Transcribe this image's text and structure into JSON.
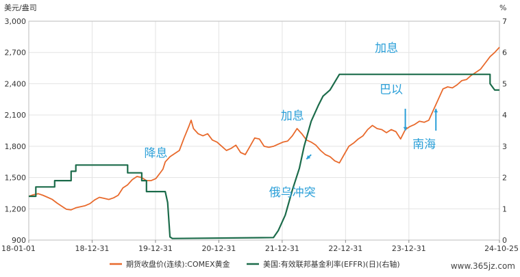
{
  "chart_data": {
    "type": "line",
    "left_axis": {
      "unit": "美元/盎司",
      "ticks": [
        "3,000",
        "2,700",
        "2,400",
        "2,100",
        "1,800",
        "1,500",
        "1,200",
        "900"
      ],
      "ylim": [
        900,
        3000
      ]
    },
    "right_axis": {
      "unit": "%",
      "ticks": [
        "7",
        "6",
        "5",
        "4",
        "3",
        "2",
        "1",
        "0"
      ],
      "ylim": [
        0,
        7
      ]
    },
    "x_ticks": [
      "18-01-01",
      "18-12-31",
      "19-12-31",
      "20-12-31",
      "21-12-31",
      "22-12-31",
      "23-12-31",
      "24-10-25"
    ],
    "x_tick_pos": [
      0,
      0.1346,
      0.2692,
      0.4038,
      0.5384,
      0.673,
      0.8076,
      1.0
    ],
    "grid": true,
    "legend_position": "bottom",
    "series": [
      {
        "name": "期货收盘价(连续):COMEX黄金",
        "axis": "left",
        "color": "#e8692b",
        "points": [
          [
            0.0,
            1320
          ],
          [
            0.01,
            1335
          ],
          [
            0.02,
            1345
          ],
          [
            0.03,
            1330
          ],
          [
            0.04,
            1310
          ],
          [
            0.05,
            1290
          ],
          [
            0.06,
            1255
          ],
          [
            0.07,
            1225
          ],
          [
            0.08,
            1195
          ],
          [
            0.09,
            1190
          ],
          [
            0.1,
            1210
          ],
          [
            0.11,
            1220
          ],
          [
            0.12,
            1230
          ],
          [
            0.13,
            1250
          ],
          [
            0.14,
            1285
          ],
          [
            0.15,
            1310
          ],
          [
            0.16,
            1300
          ],
          [
            0.17,
            1290
          ],
          [
            0.18,
            1305
          ],
          [
            0.19,
            1330
          ],
          [
            0.2,
            1400
          ],
          [
            0.21,
            1430
          ],
          [
            0.22,
            1480
          ],
          [
            0.23,
            1510
          ],
          [
            0.24,
            1500
          ],
          [
            0.25,
            1470
          ],
          [
            0.26,
            1470
          ],
          [
            0.27,
            1490
          ],
          [
            0.28,
            1550
          ],
          [
            0.285,
            1580
          ],
          [
            0.29,
            1650
          ],
          [
            0.3,
            1700
          ],
          [
            0.31,
            1730
          ],
          [
            0.32,
            1760
          ],
          [
            0.33,
            1880
          ],
          [
            0.34,
            1990
          ],
          [
            0.345,
            2050
          ],
          [
            0.35,
            1970
          ],
          [
            0.36,
            1920
          ],
          [
            0.37,
            1900
          ],
          [
            0.38,
            1920
          ],
          [
            0.39,
            1860
          ],
          [
            0.4,
            1840
          ],
          [
            0.41,
            1800
          ],
          [
            0.42,
            1760
          ],
          [
            0.43,
            1780
          ],
          [
            0.44,
            1810
          ],
          [
            0.45,
            1740
          ],
          [
            0.46,
            1720
          ],
          [
            0.47,
            1800
          ],
          [
            0.48,
            1880
          ],
          [
            0.49,
            1870
          ],
          [
            0.5,
            1800
          ],
          [
            0.51,
            1790
          ],
          [
            0.52,
            1800
          ],
          [
            0.53,
            1820
          ],
          [
            0.54,
            1840
          ],
          [
            0.55,
            1850
          ],
          [
            0.56,
            1900
          ],
          [
            0.57,
            1970
          ],
          [
            0.58,
            1920
          ],
          [
            0.59,
            1860
          ],
          [
            0.6,
            1840
          ],
          [
            0.61,
            1810
          ],
          [
            0.62,
            1760
          ],
          [
            0.63,
            1720
          ],
          [
            0.64,
            1700
          ],
          [
            0.65,
            1660
          ],
          [
            0.66,
            1640
          ],
          [
            0.67,
            1720
          ],
          [
            0.68,
            1800
          ],
          [
            0.69,
            1830
          ],
          [
            0.7,
            1870
          ],
          [
            0.71,
            1900
          ],
          [
            0.72,
            1960
          ],
          [
            0.73,
            2000
          ],
          [
            0.74,
            1970
          ],
          [
            0.75,
            1960
          ],
          [
            0.76,
            1930
          ],
          [
            0.77,
            1960
          ],
          [
            0.78,
            1940
          ],
          [
            0.79,
            1870
          ],
          [
            0.8,
            1960
          ],
          [
            0.81,
            1990
          ],
          [
            0.82,
            2010
          ],
          [
            0.83,
            2040
          ],
          [
            0.84,
            2030
          ],
          [
            0.85,
            2050
          ],
          [
            0.86,
            2150
          ],
          [
            0.87,
            2250
          ],
          [
            0.88,
            2350
          ],
          [
            0.89,
            2370
          ],
          [
            0.9,
            2360
          ],
          [
            0.91,
            2390
          ],
          [
            0.92,
            2430
          ],
          [
            0.93,
            2440
          ],
          [
            0.94,
            2480
          ],
          [
            0.95,
            2510
          ],
          [
            0.96,
            2540
          ],
          [
            0.97,
            2600
          ],
          [
            0.98,
            2660
          ],
          [
            0.99,
            2700
          ],
          [
            1.0,
            2750
          ]
        ]
      },
      {
        "name": "美国:有效联邦基金利率(EFFR)(日)(右轴)",
        "axis": "right",
        "color": "#1b6b4a",
        "points": [
          [
            0.0,
            1.4
          ],
          [
            0.015,
            1.4
          ],
          [
            0.015,
            1.7
          ],
          [
            0.055,
            1.7
          ],
          [
            0.055,
            1.9
          ],
          [
            0.09,
            1.9
          ],
          [
            0.09,
            2.2
          ],
          [
            0.1,
            2.2
          ],
          [
            0.1,
            2.4
          ],
          [
            0.21,
            2.4
          ],
          [
            0.21,
            2.15
          ],
          [
            0.24,
            2.15
          ],
          [
            0.24,
            1.9
          ],
          [
            0.25,
            1.9
          ],
          [
            0.25,
            1.55
          ],
          [
            0.29,
            1.55
          ],
          [
            0.295,
            1.2
          ],
          [
            0.3,
            0.1
          ],
          [
            0.305,
            0.05
          ],
          [
            0.52,
            0.08
          ],
          [
            0.53,
            0.3
          ],
          [
            0.545,
            0.8
          ],
          [
            0.56,
            1.6
          ],
          [
            0.575,
            2.3
          ],
          [
            0.585,
            3.0
          ],
          [
            0.6,
            3.8
          ],
          [
            0.615,
            4.3
          ],
          [
            0.625,
            4.6
          ],
          [
            0.64,
            4.8
          ],
          [
            0.66,
            5.3
          ],
          [
            0.98,
            5.3
          ],
          [
            0.98,
            5.0
          ],
          [
            0.99,
            4.8
          ],
          [
            1.0,
            4.8
          ]
        ]
      }
    ],
    "annotations": [
      {
        "text": "降息",
        "rx": 0.27,
        "ry": 0.62,
        "arrow": null
      },
      {
        "text": "加息",
        "rx": 0.56,
        "ry": 0.45,
        "arrow": null
      },
      {
        "text": "俄乌冲突",
        "rx": 0.56,
        "ry": 0.8,
        "arrow": [
          0.6,
          0.61,
          0.59,
          0.63
        ]
      },
      {
        "text": "加息",
        "rx": 0.76,
        "ry": 0.14,
        "arrow": null
      },
      {
        "text": "巴以",
        "rx": 0.77,
        "ry": 0.33,
        "arrow": [
          0.8,
          0.4,
          0.8,
          0.5
        ]
      },
      {
        "text": "南海",
        "rx": 0.84,
        "ry": 0.58,
        "arrow": [
          0.865,
          0.5,
          0.865,
          0.4
        ]
      }
    ]
  },
  "watermark": "www.365jz.com"
}
